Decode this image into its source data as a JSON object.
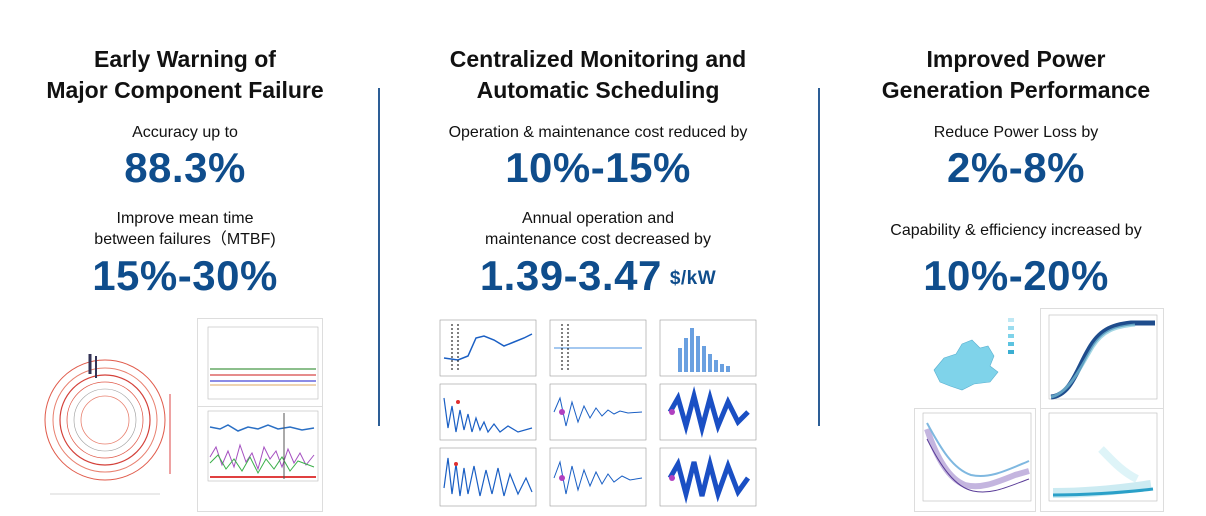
{
  "columns": [
    {
      "title_line1": "Early Warning of",
      "title_line2": "Major Component Failure",
      "metrics": [
        {
          "label_line1": "Accuracy up to",
          "label_line2": "",
          "value": "88.3%",
          "unit": ""
        },
        {
          "label_line1": "Improve mean time",
          "label_line2": "between failures（MTBF)",
          "value": "15%-30%",
          "unit": ""
        }
      ]
    },
    {
      "title_line1": "Centralized Monitoring and",
      "title_line2": "Automatic Scheduling",
      "metrics": [
        {
          "label_line1": "Operation & maintenance cost reduced by",
          "label_line2": "",
          "value": "10%-15%",
          "unit": ""
        },
        {
          "label_line1": "Annual operation and",
          "label_line2": "maintenance cost decreased by",
          "value": "1.39-3.47",
          "unit": "$/kW"
        }
      ]
    },
    {
      "title_line1": "Improved Power",
      "title_line2": "Generation Performance",
      "metrics": [
        {
          "label_line1": "Reduce Power Loss by",
          "label_line2": "",
          "value": "2%-8%",
          "unit": ""
        },
        {
          "label_line1": "Capability & efficiency increased by",
          "label_line2": "",
          "value": "10%-20%",
          "unit": ""
        }
      ]
    }
  ],
  "colors": {
    "accent": "#0f4d8c",
    "divider": "#2d5e96",
    "text": "#111111"
  }
}
